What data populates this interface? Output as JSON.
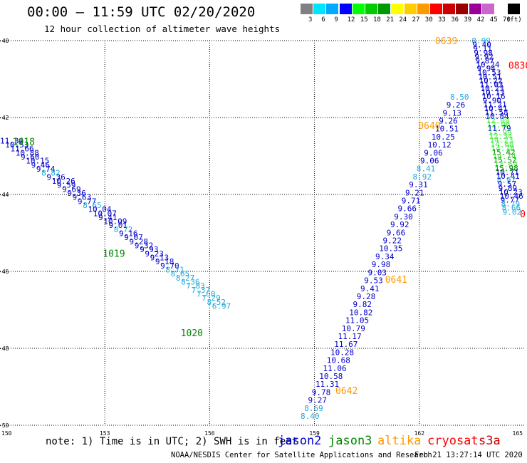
{
  "header": {
    "title": "00:00 – 11:59 UTC 02/20/2020",
    "subtitle": "12 hour collection of altimeter wave heights"
  },
  "legend": {
    "unit": "(ft)",
    "colors": [
      "#808080",
      "#00e5ff",
      "#00aaff",
      "#0000ff",
      "#00ff00",
      "#00cc00",
      "#009900",
      "#ffff00",
      "#ffcc00",
      "#ff9900",
      "#ff0000",
      "#cc0000",
      "#990000",
      "#990099",
      "#cc66cc",
      "#ffffff",
      "#000000"
    ],
    "labels": [
      "3",
      "6",
      "9",
      "12",
      "15",
      "18",
      "21",
      "24",
      "27",
      "30",
      "33",
      "36",
      "39",
      "42",
      "45",
      "70"
    ]
  },
  "palette": {
    "jason2": "#0000cc",
    "jason3": "#008800",
    "altika": "#ff9900",
    "cryosat": "#ff0000",
    "s3a": "#cc0000",
    "cyan": "#22aadd",
    "lgreen": "#44ee44"
  },
  "axes": {
    "lon_ticks": [
      "150",
      "153",
      "156",
      "159",
      "162",
      "165"
    ],
    "lat_ticks": [
      "-40",
      "-42",
      "-44",
      "-46",
      "-48",
      "-50"
    ],
    "lon_range": [
      150,
      165
    ],
    "lat_range": [
      -50,
      -40
    ]
  },
  "chart_data": {
    "type": "scatter",
    "tracks": [
      {
        "name": "jason3",
        "anchor": [
          150.0,
          -42.6
        ],
        "step": [
          0.148,
          -0.1048
        ],
        "values": [
          {
            "v": "11.34",
            "c": "jason2"
          },
          {
            "v": "10.53",
            "c": "jason2"
          },
          {
            "v": "11.66",
            "c": "jason2"
          },
          {
            "v": "10.88",
            "c": "jason2"
          },
          {
            "v": "9.60",
            "c": "jason2"
          },
          {
            "v": "10.15",
            "c": "jason2"
          },
          {
            "v": "9.46",
            "c": "jason2"
          },
          {
            "v": "9.74",
            "c": "jason2"
          },
          {
            "v": "8.82",
            "c": "cyan"
          },
          {
            "v": "9.36",
            "c": "jason2"
          },
          {
            "v": "10.26",
            "c": "jason2"
          },
          {
            "v": "9.59",
            "c": "jason2"
          },
          {
            "v": "9.69",
            "c": "jason2"
          },
          {
            "v": "9.36",
            "c": "jason2"
          },
          {
            "v": "9.63",
            "c": "jason2"
          },
          {
            "v": "9.77",
            "c": "jason2"
          },
          {
            "v": "8.65",
            "c": "cyan"
          },
          {
            "v": "10.04",
            "c": "jason2"
          },
          {
            "v": "10.07",
            "c": "jason2"
          },
          {
            "v": "9.41",
            "c": "jason2"
          },
          {
            "v": "10.09",
            "c": "jason2"
          },
          {
            "v": "9.01",
            "c": "jason2"
          },
          {
            "v": "8.72",
            "c": "cyan"
          },
          {
            "v": "9.16",
            "c": "jason2"
          },
          {
            "v": "9.07",
            "c": "jason2"
          },
          {
            "v": "9.28",
            "c": "jason2"
          },
          {
            "v": "9.32",
            "c": "jason2"
          },
          {
            "v": "9.93",
            "c": "jason2"
          },
          {
            "v": "9.23",
            "c": "jason2"
          },
          {
            "v": "9.13",
            "c": "jason2"
          },
          {
            "v": "9.18",
            "c": "jason2"
          },
          {
            "v": "9.70",
            "c": "jason2"
          },
          {
            "v": "8.71",
            "c": "cyan"
          },
          {
            "v": "8.65",
            "c": "cyan"
          },
          {
            "v": "8.27",
            "c": "cyan"
          },
          {
            "v": "8.36",
            "c": "cyan"
          },
          {
            "v": "7.83",
            "c": "cyan"
          },
          {
            "v": "7.37",
            "c": "cyan"
          },
          {
            "v": "7.60",
            "c": "cyan"
          },
          {
            "v": "7.29",
            "c": "cyan"
          },
          {
            "v": "8.52",
            "c": "cyan"
          },
          {
            "v": "6.97",
            "c": "cyan"
          }
        ]
      },
      {
        "name": "altika",
        "anchor": [
          158.6,
          -49.76
        ],
        "step": [
          0.107,
          0.2075
        ],
        "values": [
          {
            "v": "8.40",
            "c": "cyan"
          },
          {
            "v": "8.69",
            "c": "cyan"
          },
          {
            "v": "9.27",
            "c": "jason2"
          },
          {
            "v": "9.78",
            "c": "jason2"
          },
          {
            "v": "11.31",
            "c": "jason2"
          },
          {
            "v": "10.58",
            "c": "jason2"
          },
          {
            "v": "11.06",
            "c": "jason2"
          },
          {
            "v": "10.68",
            "c": "jason2"
          },
          {
            "v": "10.28",
            "c": "jason2"
          },
          {
            "v": "11.67",
            "c": "jason2"
          },
          {
            "v": "11.17",
            "c": "jason2"
          },
          {
            "v": "10.79",
            "c": "jason2"
          },
          {
            "v": "11.05",
            "c": "jason2"
          },
          {
            "v": "10.82",
            "c": "jason2"
          },
          {
            "v": "9.82",
            "c": "jason2"
          },
          {
            "v": "9.28",
            "c": "jason2"
          },
          {
            "v": "9.41",
            "c": "jason2"
          },
          {
            "v": "9.53",
            "c": "jason2"
          },
          {
            "v": "9.03",
            "c": "jason2"
          },
          {
            "v": "9.98",
            "c": "jason2"
          },
          {
            "v": "9.34",
            "c": "jason2"
          },
          {
            "v": "10.35",
            "c": "jason2"
          },
          {
            "v": "9.22",
            "c": "jason2"
          },
          {
            "v": "9.66",
            "c": "jason2"
          },
          {
            "v": "9.92",
            "c": "jason2"
          },
          {
            "v": "9.30",
            "c": "jason2"
          },
          {
            "v": "9.66",
            "c": "jason2"
          },
          {
            "v": "9.71",
            "c": "jason2"
          },
          {
            "v": "9.21",
            "c": "jason2"
          },
          {
            "v": "9.31",
            "c": "jason2"
          },
          {
            "v": "8.92",
            "c": "cyan"
          },
          {
            "v": "8.41",
            "c": "cyan"
          },
          {
            "v": "9.06",
            "c": "jason2"
          },
          {
            "v": "9.06",
            "c": "jason2"
          },
          {
            "v": "10.12",
            "c": "jason2"
          },
          {
            "v": "10.25",
            "c": "jason2"
          },
          {
            "v": "10.51",
            "c": "jason2"
          },
          {
            "v": "9.26",
            "c": "jason2"
          },
          {
            "v": "9.13",
            "c": "jason2"
          },
          {
            "v": "9.26",
            "c": "jason2"
          },
          {
            "v": "8.50",
            "c": "cyan"
          }
        ]
      },
      {
        "name": "cryosat",
        "anchor": [
          163.5,
          -40.0
        ],
        "step": [
          0.0205,
          -0.1035
        ],
        "values": [
          {
            "v": "8.99",
            "c": "cyan"
          },
          {
            "v": "9.40",
            "c": "jason2"
          },
          {
            "v": "9.11",
            "c": "jason2"
          },
          {
            "v": "9.98",
            "c": "jason2"
          },
          {
            "v": "9.92",
            "c": "jason2"
          },
          {
            "v": "9.87",
            "c": "jason2"
          },
          {
            "v": "10.24",
            "c": "jason2"
          },
          {
            "v": "9.94",
            "c": "jason2"
          },
          {
            "v": "10.53",
            "c": "jason2"
          },
          {
            "v": "10.51",
            "c": "jason2"
          },
          {
            "v": "10.22",
            "c": "jason2"
          },
          {
            "v": "11.03",
            "c": "jason2"
          },
          {
            "v": "10.23",
            "c": "jason2"
          },
          {
            "v": "10.13",
            "c": "jason2"
          },
          {
            "v": "10.16",
            "c": "jason2"
          },
          {
            "v": "9.90",
            "c": "jason2"
          },
          {
            "v": "11.21",
            "c": "jason2"
          },
          {
            "v": "10.41",
            "c": "jason2"
          },
          {
            "v": "11.58",
            "c": "jason2"
          },
          {
            "v": "10.84",
            "c": "jason2"
          },
          {
            "v": "12.08",
            "c": "lgreen"
          },
          {
            "v": "12.06",
            "c": "lgreen"
          },
          {
            "v": "11.79",
            "c": "jason2"
          },
          {
            "v": "12.99",
            "c": "lgreen"
          },
          {
            "v": "12.34",
            "c": "lgreen"
          },
          {
            "v": "14.23",
            "c": "lgreen"
          },
          {
            "v": "14.68",
            "c": "lgreen"
          },
          {
            "v": "14.78",
            "c": "lgreen"
          },
          {
            "v": "15.42",
            "c": "jason3"
          },
          {
            "v": "14.74",
            "c": "lgreen"
          },
          {
            "v": "15.52",
            "c": "jason3"
          },
          {
            "v": "13.69",
            "c": "lgreen"
          },
          {
            "v": "15.98",
            "c": "jason3"
          },
          {
            "v": "10.71",
            "c": "jason2"
          },
          {
            "v": "10.41",
            "c": "jason2"
          },
          {
            "v": "8.97",
            "c": "cyan"
          },
          {
            "v": "9.57",
            "c": "jason2"
          },
          {
            "v": "9.89",
            "c": "jason2"
          },
          {
            "v": "10.23",
            "c": "jason2"
          },
          {
            "v": "10.46",
            "c": "jason2"
          },
          {
            "v": "9.77",
            "c": "jason2"
          },
          {
            "v": "8.79",
            "c": "cyan"
          },
          {
            "v": "8.66",
            "c": "cyan"
          },
          {
            "v": "9.02",
            "c": "cyan"
          }
        ]
      }
    ],
    "time_labels": [
      {
        "t": "1018",
        "c": "jason3",
        "lon": 150.36,
        "lat": -42.62
      },
      {
        "t": "1019",
        "c": "jason3",
        "lon": 152.94,
        "lat": -45.53
      },
      {
        "t": "1020",
        "c": "jason3",
        "lon": 155.17,
        "lat": -47.59
      },
      {
        "t": "0639",
        "c": "altika",
        "lon": 162.45,
        "lat": -40.0
      },
      {
        "t": "0640",
        "c": "altika",
        "lon": 161.97,
        "lat": -42.2
      },
      {
        "t": "0641",
        "c": "altika",
        "lon": 161.02,
        "lat": -46.2
      },
      {
        "t": "0642",
        "c": "altika",
        "lon": 159.6,
        "lat": -49.09
      },
      {
        "t": "0830",
        "c": "cryosat",
        "lon": 164.55,
        "lat": -40.64
      },
      {
        "t": "0",
        "c": "cryosat",
        "lon": 164.88,
        "lat": -44.5
      }
    ]
  },
  "footer": {
    "note": "note: 1) Time is in UTC; 2) SWH is in feet",
    "satellites": [
      {
        "name": "jason2",
        "color": "#0000cc",
        "x": 390
      },
      {
        "name": "jason3",
        "color": "#008800",
        "x": 461
      },
      {
        "name": "altika",
        "color": "#ff9900",
        "x": 530
      },
      {
        "name": "cryosat",
        "color": "#ff0000",
        "x": 600
      },
      {
        "name": "s3a",
        "color": "#cc0000",
        "x": 672
      }
    ],
    "credit": "NOAA/NESDIS Center for Satellite Applications and Research",
    "timestamp": "Feb 21 13:27:14 UTC 2020"
  }
}
